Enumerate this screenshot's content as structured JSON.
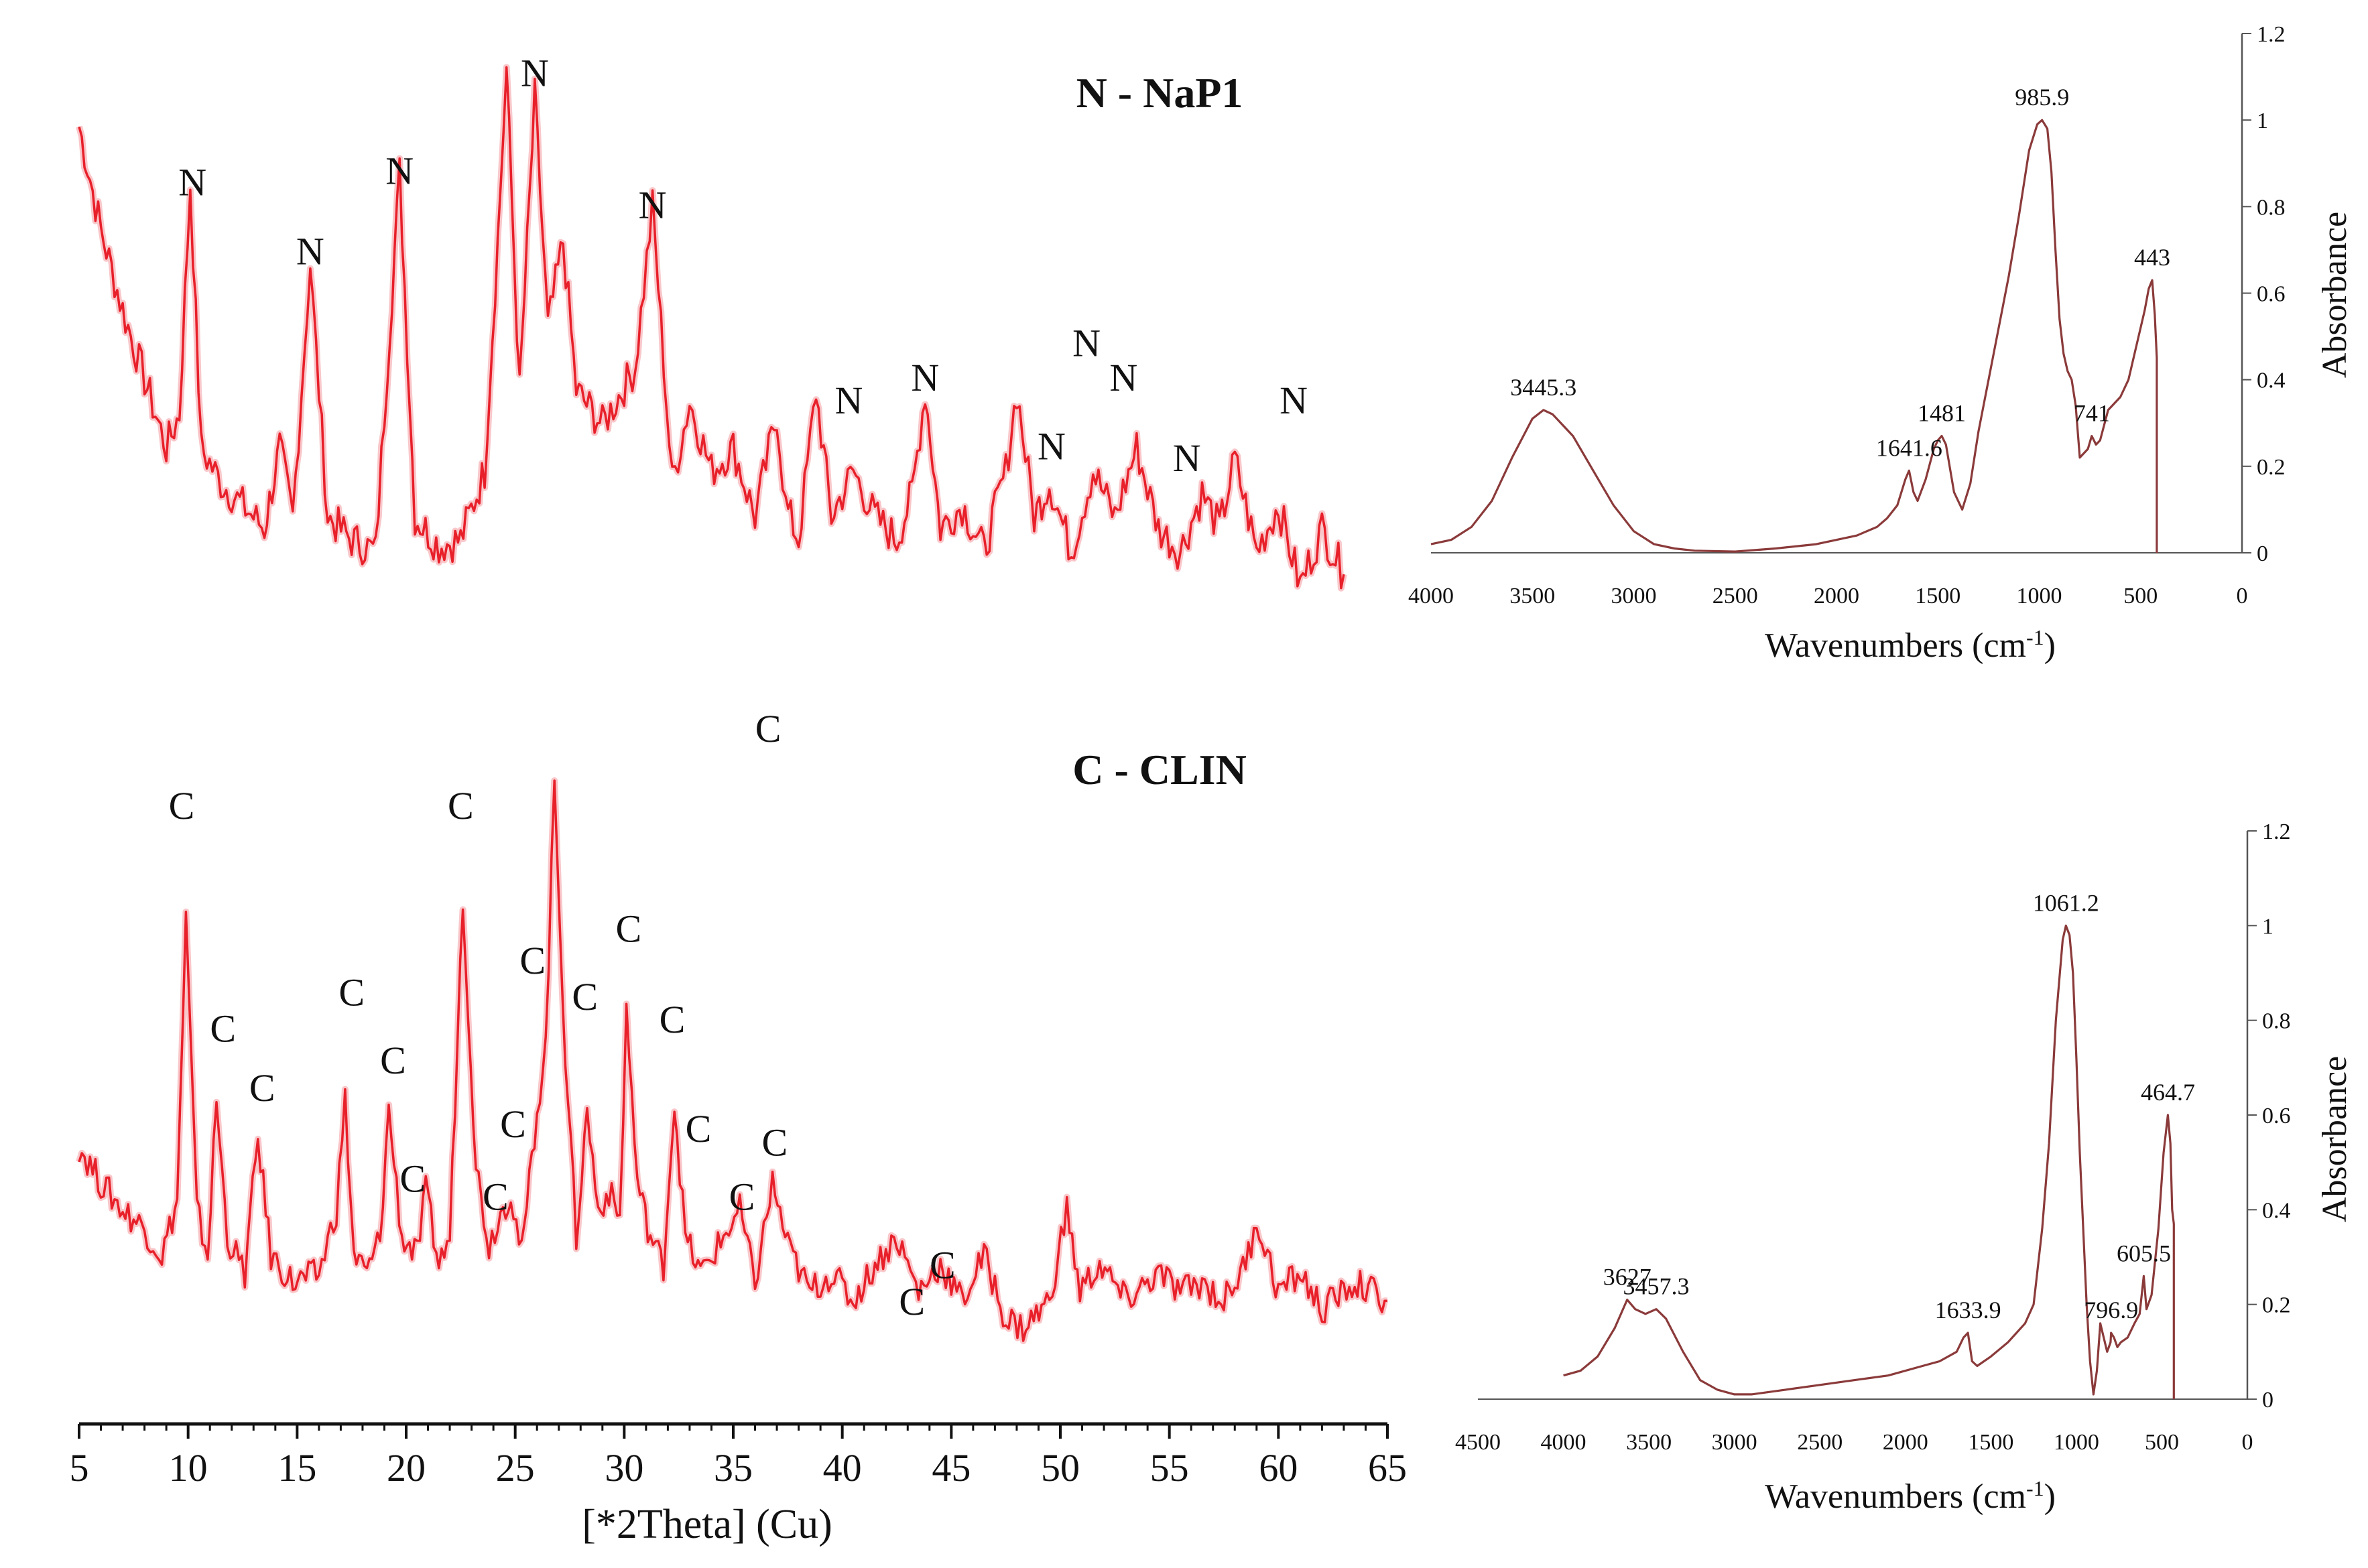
{
  "chart_data": [
    {
      "id": "xrd_napi",
      "type": "line",
      "title": "N - NaP1",
      "xlim": [
        5,
        65
      ],
      "peak_marker": "N",
      "x": [
        5,
        6,
        7,
        8,
        9,
        9.6,
        10.1,
        10.6,
        11.5,
        12.5,
        13.5,
        14.2,
        14.8,
        15.6,
        16.4,
        17.5,
        18.6,
        19.0,
        19.7,
        20.4,
        21.5,
        22.5,
        23.6,
        24.2,
        24.6,
        25.2,
        25.9,
        26.5,
        27.2,
        27.8,
        29.0,
        30.5,
        31.3,
        32.2,
        33.0,
        34.0,
        35.0,
        36.0,
        37.0,
        37.4,
        38.0,
        38.8,
        39.5,
        40.5,
        41.5,
        42.5,
        43.2,
        43.8,
        44.5,
        45.5,
        46.5,
        47.5,
        48.0,
        48.8,
        49.5,
        50.5,
        51.5,
        52.5,
        53.5,
        54.5,
        55.5,
        56.5,
        57.3,
        58.0,
        59.0,
        60.0,
        61.0,
        62.0,
        63.0
      ],
      "values": [
        0.9,
        0.72,
        0.58,
        0.46,
        0.34,
        0.4,
        0.8,
        0.34,
        0.28,
        0.24,
        0.2,
        0.34,
        0.22,
        0.66,
        0.22,
        0.18,
        0.16,
        0.4,
        0.82,
        0.22,
        0.17,
        0.18,
        0.3,
        0.7,
        1.0,
        0.44,
        0.95,
        0.55,
        0.7,
        0.44,
        0.38,
        0.48,
        0.76,
        0.28,
        0.42,
        0.3,
        0.34,
        0.22,
        0.4,
        0.24,
        0.18,
        0.44,
        0.22,
        0.3,
        0.22,
        0.18,
        0.26,
        0.44,
        0.2,
        0.24,
        0.16,
        0.3,
        0.44,
        0.22,
        0.28,
        0.16,
        0.3,
        0.22,
        0.34,
        0.2,
        0.16,
        0.26,
        0.2,
        0.32,
        0.16,
        0.24,
        0.1,
        0.2,
        0.12
      ],
      "peaks": [
        {
          "label": "N",
          "x": 10.2,
          "y": 0.78
        },
        {
          "label": "N",
          "x": 15.6,
          "y": 0.66
        },
        {
          "label": "N",
          "x": 19.7,
          "y": 0.8
        },
        {
          "label": "N",
          "x": 25.9,
          "y": 0.97
        },
        {
          "label": "N",
          "x": 31.3,
          "y": 0.74
        },
        {
          "label": "N",
          "x": 40.3,
          "y": 0.4
        },
        {
          "label": "N",
          "x": 43.8,
          "y": 0.44
        },
        {
          "label": "N",
          "x": 49.6,
          "y": 0.32
        },
        {
          "label": "N",
          "x": 51.2,
          "y": 0.5
        },
        {
          "label": "N",
          "x": 52.9,
          "y": 0.44
        },
        {
          "label": "N",
          "x": 55.8,
          "y": 0.3
        },
        {
          "label": "N",
          "x": 60.7,
          "y": 0.4
        }
      ]
    },
    {
      "id": "xrd_clin",
      "type": "line",
      "title": "C - CLIN",
      "xlim": [
        5,
        65
      ],
      "xticks": [
        5,
        10,
        15,
        20,
        25,
        30,
        35,
        40,
        45,
        50,
        55,
        60,
        65
      ],
      "xlabel": "[*2Theta] (Cu)",
      "peak_marker": "C",
      "x": [
        5,
        6,
        7,
        8,
        8.8,
        9.5,
        9.9,
        10.4,
        10.9,
        11.3,
        11.8,
        12.6,
        13.2,
        13.8,
        14.8,
        16.0,
        16.8,
        17.2,
        17.6,
        18.2,
        18.8,
        19.2,
        19.8,
        20.5,
        20.9,
        21.5,
        22.0,
        22.6,
        23.2,
        23.8,
        24.2,
        24.8,
        25.3,
        26.0,
        26.4,
        26.8,
        27.3,
        27.8,
        28.3,
        28.8,
        29.3,
        29.8,
        30.1,
        30.6,
        31.2,
        31.8,
        32.3,
        32.8,
        33.5,
        34.3,
        35.3,
        36.0,
        36.8,
        37.5,
        38.5,
        39.5,
        40.5,
        41.5,
        42.5,
        43.5,
        44.5,
        45.5,
        46.5,
        47.5,
        48.3,
        49.5,
        50.3,
        50.9,
        51.8,
        53.0,
        54.5,
        55.5,
        56.5,
        57.5,
        58.5,
        59.0,
        60.0,
        61.0,
        62.0,
        63.5,
        65
      ],
      "values": [
        0.5,
        0.42,
        0.36,
        0.32,
        0.26,
        0.38,
        1.0,
        0.36,
        0.26,
        0.6,
        0.3,
        0.22,
        0.52,
        0.26,
        0.2,
        0.22,
        0.36,
        0.6,
        0.26,
        0.22,
        0.3,
        0.58,
        0.3,
        0.26,
        0.4,
        0.24,
        0.3,
        1.05,
        0.46,
        0.28,
        0.34,
        0.4,
        0.26,
        0.58,
        0.72,
        1.3,
        0.7,
        0.3,
        0.58,
        0.36,
        0.4,
        0.34,
        0.8,
        0.42,
        0.3,
        0.24,
        0.6,
        0.3,
        0.22,
        0.28,
        0.36,
        0.2,
        0.42,
        0.28,
        0.18,
        0.22,
        0.16,
        0.24,
        0.3,
        0.18,
        0.24,
        0.16,
        0.26,
        0.12,
        0.1,
        0.16,
        0.36,
        0.18,
        0.24,
        0.16,
        0.22,
        0.18,
        0.2,
        0.16,
        0.24,
        0.34,
        0.18,
        0.22,
        0.14,
        0.2,
        0.16
      ],
      "peaks": [
        {
          "label": "C",
          "x": 9.7,
          "y": 1.22
        },
        {
          "label": "C",
          "x": 11.6,
          "y": 0.73
        },
        {
          "label": "C",
          "x": 13.4,
          "y": 0.6
        },
        {
          "label": "C",
          "x": 17.5,
          "y": 0.81
        },
        {
          "label": "C",
          "x": 19.4,
          "y": 0.66
        },
        {
          "label": "C",
          "x": 20.3,
          "y": 0.4
        },
        {
          "label": "C",
          "x": 22.5,
          "y": 1.22
        },
        {
          "label": "C",
          "x": 24.1,
          "y": 0.36
        },
        {
          "label": "C",
          "x": 24.9,
          "y": 0.52
        },
        {
          "label": "C",
          "x": 25.8,
          "y": 0.88
        },
        {
          "label": "C",
          "x": 28.2,
          "y": 0.8
        },
        {
          "label": "C",
          "x": 30.2,
          "y": 0.95
        },
        {
          "label": "C",
          "x": 32.2,
          "y": 0.75
        },
        {
          "label": "C",
          "x": 33.4,
          "y": 0.51
        },
        {
          "label": "C",
          "x": 35.4,
          "y": 0.36
        },
        {
          "label": "C",
          "x": 36.6,
          "y": 1.39
        },
        {
          "label": "C",
          "x": 36.9,
          "y": 0.48
        },
        {
          "label": "C",
          "x": 43.2,
          "y": 0.13
        },
        {
          "label": "C",
          "x": 44.6,
          "y": 0.21
        }
      ]
    },
    {
      "id": "ir_napi",
      "type": "line",
      "xlim": [
        4000,
        0
      ],
      "ylim": [
        0,
        1.2
      ],
      "xticks": [
        4000,
        3500,
        3000,
        2500,
        2000,
        1500,
        1000,
        500,
        0
      ],
      "yticks": [
        0,
        0.2,
        0.4,
        0.6,
        0.8,
        1,
        1.2
      ],
      "xlabel": "Wavenumbers (cm",
      "xlabel_sup": "-1",
      "xlabel_tail": ")",
      "ylabel": "Absorbance",
      "x": [
        4000,
        3900,
        3800,
        3700,
        3600,
        3500,
        3445,
        3400,
        3300,
        3200,
        3100,
        3000,
        2900,
        2800,
        2700,
        2500,
        2300,
        2100,
        1900,
        1800,
        1750,
        1700,
        1660,
        1642,
        1620,
        1600,
        1560,
        1520,
        1500,
        1481,
        1460,
        1420,
        1380,
        1340,
        1300,
        1250,
        1200,
        1150,
        1100,
        1050,
        1010,
        986,
        960,
        940,
        920,
        900,
        880,
        860,
        840,
        820,
        800,
        760,
        741,
        720,
        700,
        660,
        600,
        560,
        520,
        480,
        460,
        443,
        430,
        420,
        420
      ],
      "values": [
        0.02,
        0.03,
        0.06,
        0.12,
        0.22,
        0.31,
        0.33,
        0.32,
        0.27,
        0.19,
        0.11,
        0.05,
        0.02,
        0.01,
        0.005,
        0.003,
        0.01,
        0.02,
        0.04,
        0.06,
        0.08,
        0.11,
        0.17,
        0.19,
        0.14,
        0.12,
        0.17,
        0.24,
        0.26,
        0.27,
        0.25,
        0.14,
        0.1,
        0.16,
        0.28,
        0.4,
        0.52,
        0.64,
        0.78,
        0.93,
        0.99,
        1.0,
        0.98,
        0.88,
        0.7,
        0.54,
        0.46,
        0.42,
        0.4,
        0.34,
        0.22,
        0.24,
        0.27,
        0.25,
        0.26,
        0.33,
        0.36,
        0.4,
        0.48,
        0.56,
        0.61,
        0.63,
        0.55,
        0.45,
        0.0
      ],
      "annotations": [
        {
          "text": "3445.3",
          "x": 3445.3,
          "y": 0.33
        },
        {
          "text": "1641.6",
          "x": 1641.6,
          "y": 0.19
        },
        {
          "text": "1481",
          "x": 1481,
          "y": 0.27
        },
        {
          "text": "985.9",
          "x": 985.9,
          "y": 1.0
        },
        {
          "text": "741",
          "x": 741,
          "y": 0.27
        },
        {
          "text": "443",
          "x": 443,
          "y": 0.63
        }
      ]
    },
    {
      "id": "ir_clin",
      "type": "line",
      "xlim": [
        4500,
        0
      ],
      "ylim": [
        0,
        1.2
      ],
      "xticks": [
        4500,
        4000,
        3500,
        3000,
        2500,
        2000,
        1500,
        1000,
        500,
        0
      ],
      "yticks": [
        0,
        0.2,
        0.4,
        0.6,
        0.8,
        1,
        1.2
      ],
      "xlabel": "Wavenumbers (cm",
      "xlabel_sup": "-1",
      "xlabel_tail": ")",
      "ylabel": "Absorbance",
      "x": [
        4000,
        3900,
        3800,
        3700,
        3627,
        3580,
        3520,
        3457,
        3400,
        3300,
        3200,
        3100,
        3000,
        2900,
        2700,
        2500,
        2300,
        2100,
        1900,
        1800,
        1700,
        1660,
        1634,
        1610,
        1580,
        1500,
        1400,
        1300,
        1250,
        1200,
        1160,
        1120,
        1080,
        1061,
        1040,
        1020,
        1000,
        980,
        960,
        940,
        920,
        900,
        880,
        860,
        840,
        820,
        800,
        797,
        780,
        760,
        740,
        700,
        660,
        630,
        606,
        590,
        560,
        520,
        490,
        465,
        450,
        440,
        430,
        430
      ],
      "values": [
        0.05,
        0.06,
        0.09,
        0.15,
        0.21,
        0.19,
        0.18,
        0.19,
        0.17,
        0.1,
        0.04,
        0.02,
        0.01,
        0.01,
        0.02,
        0.03,
        0.04,
        0.05,
        0.07,
        0.08,
        0.1,
        0.13,
        0.14,
        0.08,
        0.07,
        0.09,
        0.12,
        0.16,
        0.2,
        0.36,
        0.54,
        0.8,
        0.97,
        1.0,
        0.98,
        0.9,
        0.72,
        0.52,
        0.36,
        0.2,
        0.08,
        0.01,
        0.06,
        0.16,
        0.13,
        0.1,
        0.12,
        0.14,
        0.13,
        0.11,
        0.12,
        0.13,
        0.16,
        0.18,
        0.26,
        0.19,
        0.22,
        0.36,
        0.52,
        0.6,
        0.54,
        0.4,
        0.37,
        0.0
      ],
      "annotations": [
        {
          "text": "3627",
          "x": 3627,
          "y": 0.21
        },
        {
          "text": "3457.3",
          "x": 3457.3,
          "y": 0.19
        },
        {
          "text": "1633.9",
          "x": 1633.9,
          "y": 0.14
        },
        {
          "text": "1061.2",
          "x": 1061.2,
          "y": 1.0
        },
        {
          "text": "796.9",
          "x": 796.9,
          "y": 0.14
        },
        {
          "text": "605.5",
          "x": 605.5,
          "y": 0.26
        },
        {
          "text": "464.7",
          "x": 464.7,
          "y": 0.6
        }
      ]
    }
  ],
  "colors": {
    "xrd": "#e8202a",
    "ir": "#8b3a3a",
    "axis": "#555555"
  }
}
